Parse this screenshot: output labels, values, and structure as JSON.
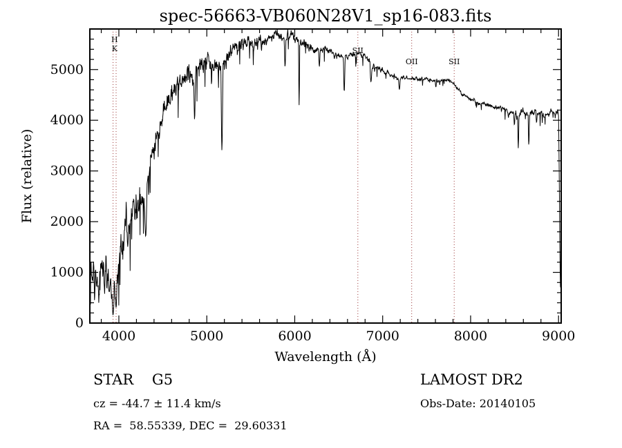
{
  "title": "spec-56663-VB060N28V1_sp16-083.fits",
  "footer": {
    "object_class": "STAR    G5",
    "survey": "LAMOST DR2",
    "velocity": "cz = -44.7 ± 11.4 km/s",
    "obs_date": "Obs-Date: 20140105",
    "coordinates": "RA =  58.55339, DEC =  29.60331"
  },
  "chart_data": {
    "type": "line",
    "title": "spec-56663-VB060N28V1_sp16-083.fits",
    "xlabel": "Wavelength (Å)",
    "ylabel": "Flux (relative)",
    "xlim": [
      3670,
      9030
    ],
    "ylim": [
      0,
      5800
    ],
    "xticks": [
      4000,
      5000,
      6000,
      7000,
      8000,
      9000
    ],
    "yticks": [
      0,
      1000,
      2000,
      3000,
      4000,
      5000
    ],
    "grid": false,
    "line_color": "#000000",
    "marker_line_color": "#993333",
    "marker_lines": [
      {
        "label": "H",
        "wavelength": 3968.5,
        "label_x": 3951,
        "label_y": 61
      },
      {
        "label": "K",
        "wavelength": 3933.7,
        "label_x": 3951,
        "label_y": 74
      },
      {
        "label": "SII",
        "wavelength": 6718,
        "label_x": 6718,
        "label_y": 77
      },
      {
        "label": "OII",
        "wavelength": 7330,
        "label_x": 7330,
        "label_y": 93
      },
      {
        "label": "SII",
        "wavelength": 7813,
        "label_x": 7813,
        "label_y": 93
      }
    ],
    "continuum": {
      "wavelength": [
        3670,
        3700,
        3740,
        3780,
        3820,
        3860,
        3900,
        3935,
        3970,
        4000,
        4060,
        4120,
        4180,
        4240,
        4300,
        4360,
        4420,
        4480,
        4540,
        4600,
        4660,
        4720,
        4780,
        4840,
        4900,
        4960,
        5020,
        5080,
        5140,
        5200,
        5260,
        5320,
        5380,
        5440,
        5500,
        5560,
        5620,
        5680,
        5740,
        5800,
        5860,
        5920,
        5980,
        6040,
        6100,
        6160,
        6220,
        6280,
        6340,
        6400,
        6460,
        6520,
        6580,
        6640,
        6700,
        6760,
        6820,
        6880,
        6940,
        7000,
        7060,
        7120,
        7180,
        7240,
        7300,
        7360,
        7420,
        7480,
        7540,
        7600,
        7660,
        7720,
        7780,
        7820,
        7860,
        7900,
        7960,
        8020,
        8080,
        8140,
        8200,
        8260,
        8320,
        8380,
        8440,
        8500,
        8560,
        8620,
        8680,
        8740,
        8800,
        8860,
        8920,
        8980,
        9000,
        9008,
        9016,
        9022
      ],
      "flux": [
        900,
        1050,
        950,
        800,
        1200,
        900,
        850,
        500,
        600,
        1300,
        1900,
        2000,
        2350,
        2500,
        2300,
        3200,
        3600,
        4000,
        4300,
        4600,
        4650,
        4800,
        4900,
        4800,
        5000,
        5150,
        5200,
        5100,
        5100,
        5150,
        5300,
        5400,
        5450,
        5500,
        5550,
        5500,
        5550,
        5550,
        5650,
        5700,
        5600,
        5650,
        5650,
        5550,
        5500,
        5450,
        5400,
        5350,
        5400,
        5400,
        5300,
        5250,
        5250,
        5300,
        5300,
        5280,
        5250,
        5050,
        5050,
        5000,
        4950,
        4900,
        4820,
        4850,
        4820,
        4820,
        4800,
        4820,
        4800,
        4780,
        4780,
        4800,
        4780,
        4700,
        4600,
        4520,
        4450,
        4400,
        4350,
        4330,
        4300,
        4270,
        4250,
        4230,
        4180,
        4150,
        4130,
        4150,
        4130,
        4150,
        4120,
        4100,
        4150,
        4150,
        4150,
        3000,
        1200,
        650
      ]
    },
    "noise_amplitude": {
      "wavelength": [
        3670,
        3950,
        4100,
        4400,
        4800,
        5200,
        5600,
        6000,
        6400,
        6800,
        7200,
        7600,
        7900,
        8300,
        8600,
        9000
      ],
      "amp": [
        380,
        350,
        280,
        220,
        170,
        150,
        110,
        90,
        70,
        55,
        40,
        35,
        35,
        45,
        70,
        50
      ]
    },
    "absorption_lines": [
      {
        "wavelength": 3889,
        "floor": 600,
        "halfwidth": 8
      },
      {
        "wavelength": 3933.7,
        "floor": 150,
        "halfwidth": 12
      },
      {
        "wavelength": 3968.5,
        "floor": 300,
        "halfwidth": 10
      },
      {
        "wavelength": 4101,
        "floor": 1500,
        "halfwidth": 10
      },
      {
        "wavelength": 4227,
        "floor": 2200,
        "halfwidth": 8
      },
      {
        "wavelength": 4305,
        "floor": 1700,
        "halfwidth": 14
      },
      {
        "wavelength": 4340,
        "floor": 2900,
        "halfwidth": 10
      },
      {
        "wavelength": 4861,
        "floor": 4000,
        "halfwidth": 10
      },
      {
        "wavelength": 5172,
        "floor": 3400,
        "halfwidth": 12
      },
      {
        "wavelength": 5890,
        "floor": 5050,
        "halfwidth": 10
      },
      {
        "wavelength": 6050,
        "floor": 4300,
        "halfwidth": 7
      },
      {
        "wavelength": 6280,
        "floor": 5050,
        "halfwidth": 8
      },
      {
        "wavelength": 6563,
        "floor": 4550,
        "halfwidth": 10
      },
      {
        "wavelength": 6867,
        "floor": 4750,
        "halfwidth": 12
      },
      {
        "wavelength": 7190,
        "floor": 4600,
        "halfwidth": 10
      },
      {
        "wavelength": 7605,
        "floor": 4650,
        "halfwidth": 8
      },
      {
        "wavelength": 8430,
        "floor": 4050,
        "halfwidth": 7
      },
      {
        "wavelength": 8498,
        "floor": 3900,
        "halfwidth": 8
      },
      {
        "wavelength": 8542,
        "floor": 3450,
        "halfwidth": 8
      },
      {
        "wavelength": 8662,
        "floor": 3500,
        "halfwidth": 8
      },
      {
        "wavelength": 8750,
        "floor": 3950,
        "halfwidth": 8
      }
    ]
  }
}
